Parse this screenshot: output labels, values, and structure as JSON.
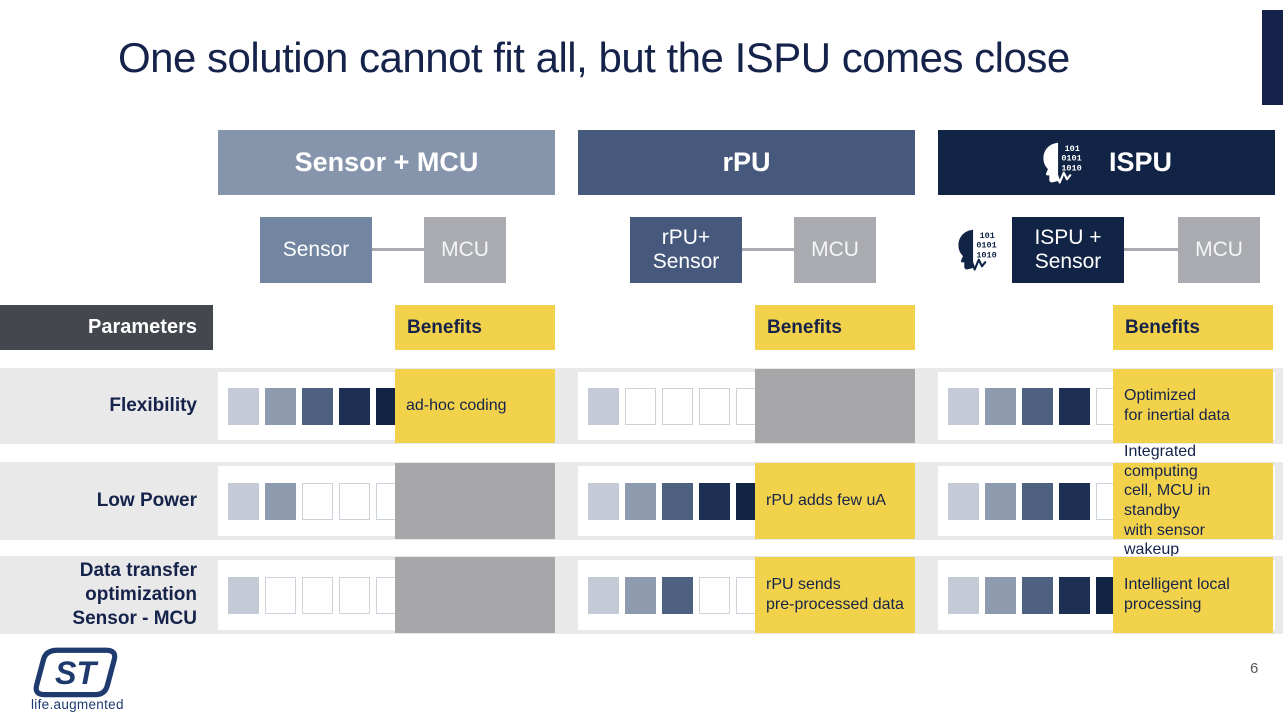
{
  "slide": {
    "title": "One solution cannot fit all, but the ISPU comes close",
    "page_number": "6",
    "logo_text": "ST",
    "logo_tagline": "life.augmented"
  },
  "parameters_label": "Parameters",
  "columns": [
    {
      "id": "sensor_mcu",
      "header": "Sensor + MCU",
      "benefits_label": "Benefits",
      "diagram": {
        "left_box": "Sensor",
        "right_box": "MCU"
      }
    },
    {
      "id": "rpu",
      "header": "rPU",
      "benefits_label": "Benefits",
      "diagram": {
        "left_box": "rPU+\nSensor",
        "right_box": "MCU"
      }
    },
    {
      "id": "ispu",
      "header": "ISPU",
      "benefits_label": "Benefits",
      "diagram": {
        "left_box": "ISPU +\nSensor",
        "right_box": "MCU"
      }
    }
  ],
  "rows": [
    {
      "label": "Flexibility",
      "cells": [
        {
          "rating": 5,
          "benefit": "ad-hoc coding"
        },
        {
          "rating": 1,
          "benefit": null
        },
        {
          "rating": 4,
          "benefit": "Optimized\nfor inertial data"
        }
      ]
    },
    {
      "label": "Low Power",
      "cells": [
        {
          "rating": 2,
          "benefit": null
        },
        {
          "rating": 5,
          "benefit": "rPU adds few uA"
        },
        {
          "rating": 4,
          "benefit": "Integrated computing\ncell, MCU in standby\nwith sensor wakeup"
        }
      ]
    },
    {
      "label": "Data transfer\noptimization\nSensor - MCU",
      "cells": [
        {
          "rating": 1,
          "benefit": null
        },
        {
          "rating": 3,
          "benefit": "rPU sends\npre-processed data"
        },
        {
          "rating": 5,
          "benefit": "Intelligent local\nprocessing"
        }
      ]
    }
  ],
  "rating_scale": {
    "max": 5,
    "fill_colors": [
      "#c4cbd6",
      "#8e9aae",
      "#4e6180",
      "#1d2f53",
      "#122443"
    ],
    "empty_border": "#ccd2da"
  },
  "icon": {
    "binary_lines": [
      "101",
      "0101",
      "1010"
    ]
  },
  "colors": {
    "title_navy": "#15234b",
    "header_steel": "#8795ac",
    "header_slate": "#46597c",
    "header_navy": "#112446",
    "sensor_box": "#7286a2",
    "mcu_box": "#a9abb0",
    "parameters_bg": "#45474f",
    "benefit_yellow": "#f3d24b",
    "no_benefit_gray": "#a6a6a9",
    "band_bg": "#e9e9ea"
  }
}
